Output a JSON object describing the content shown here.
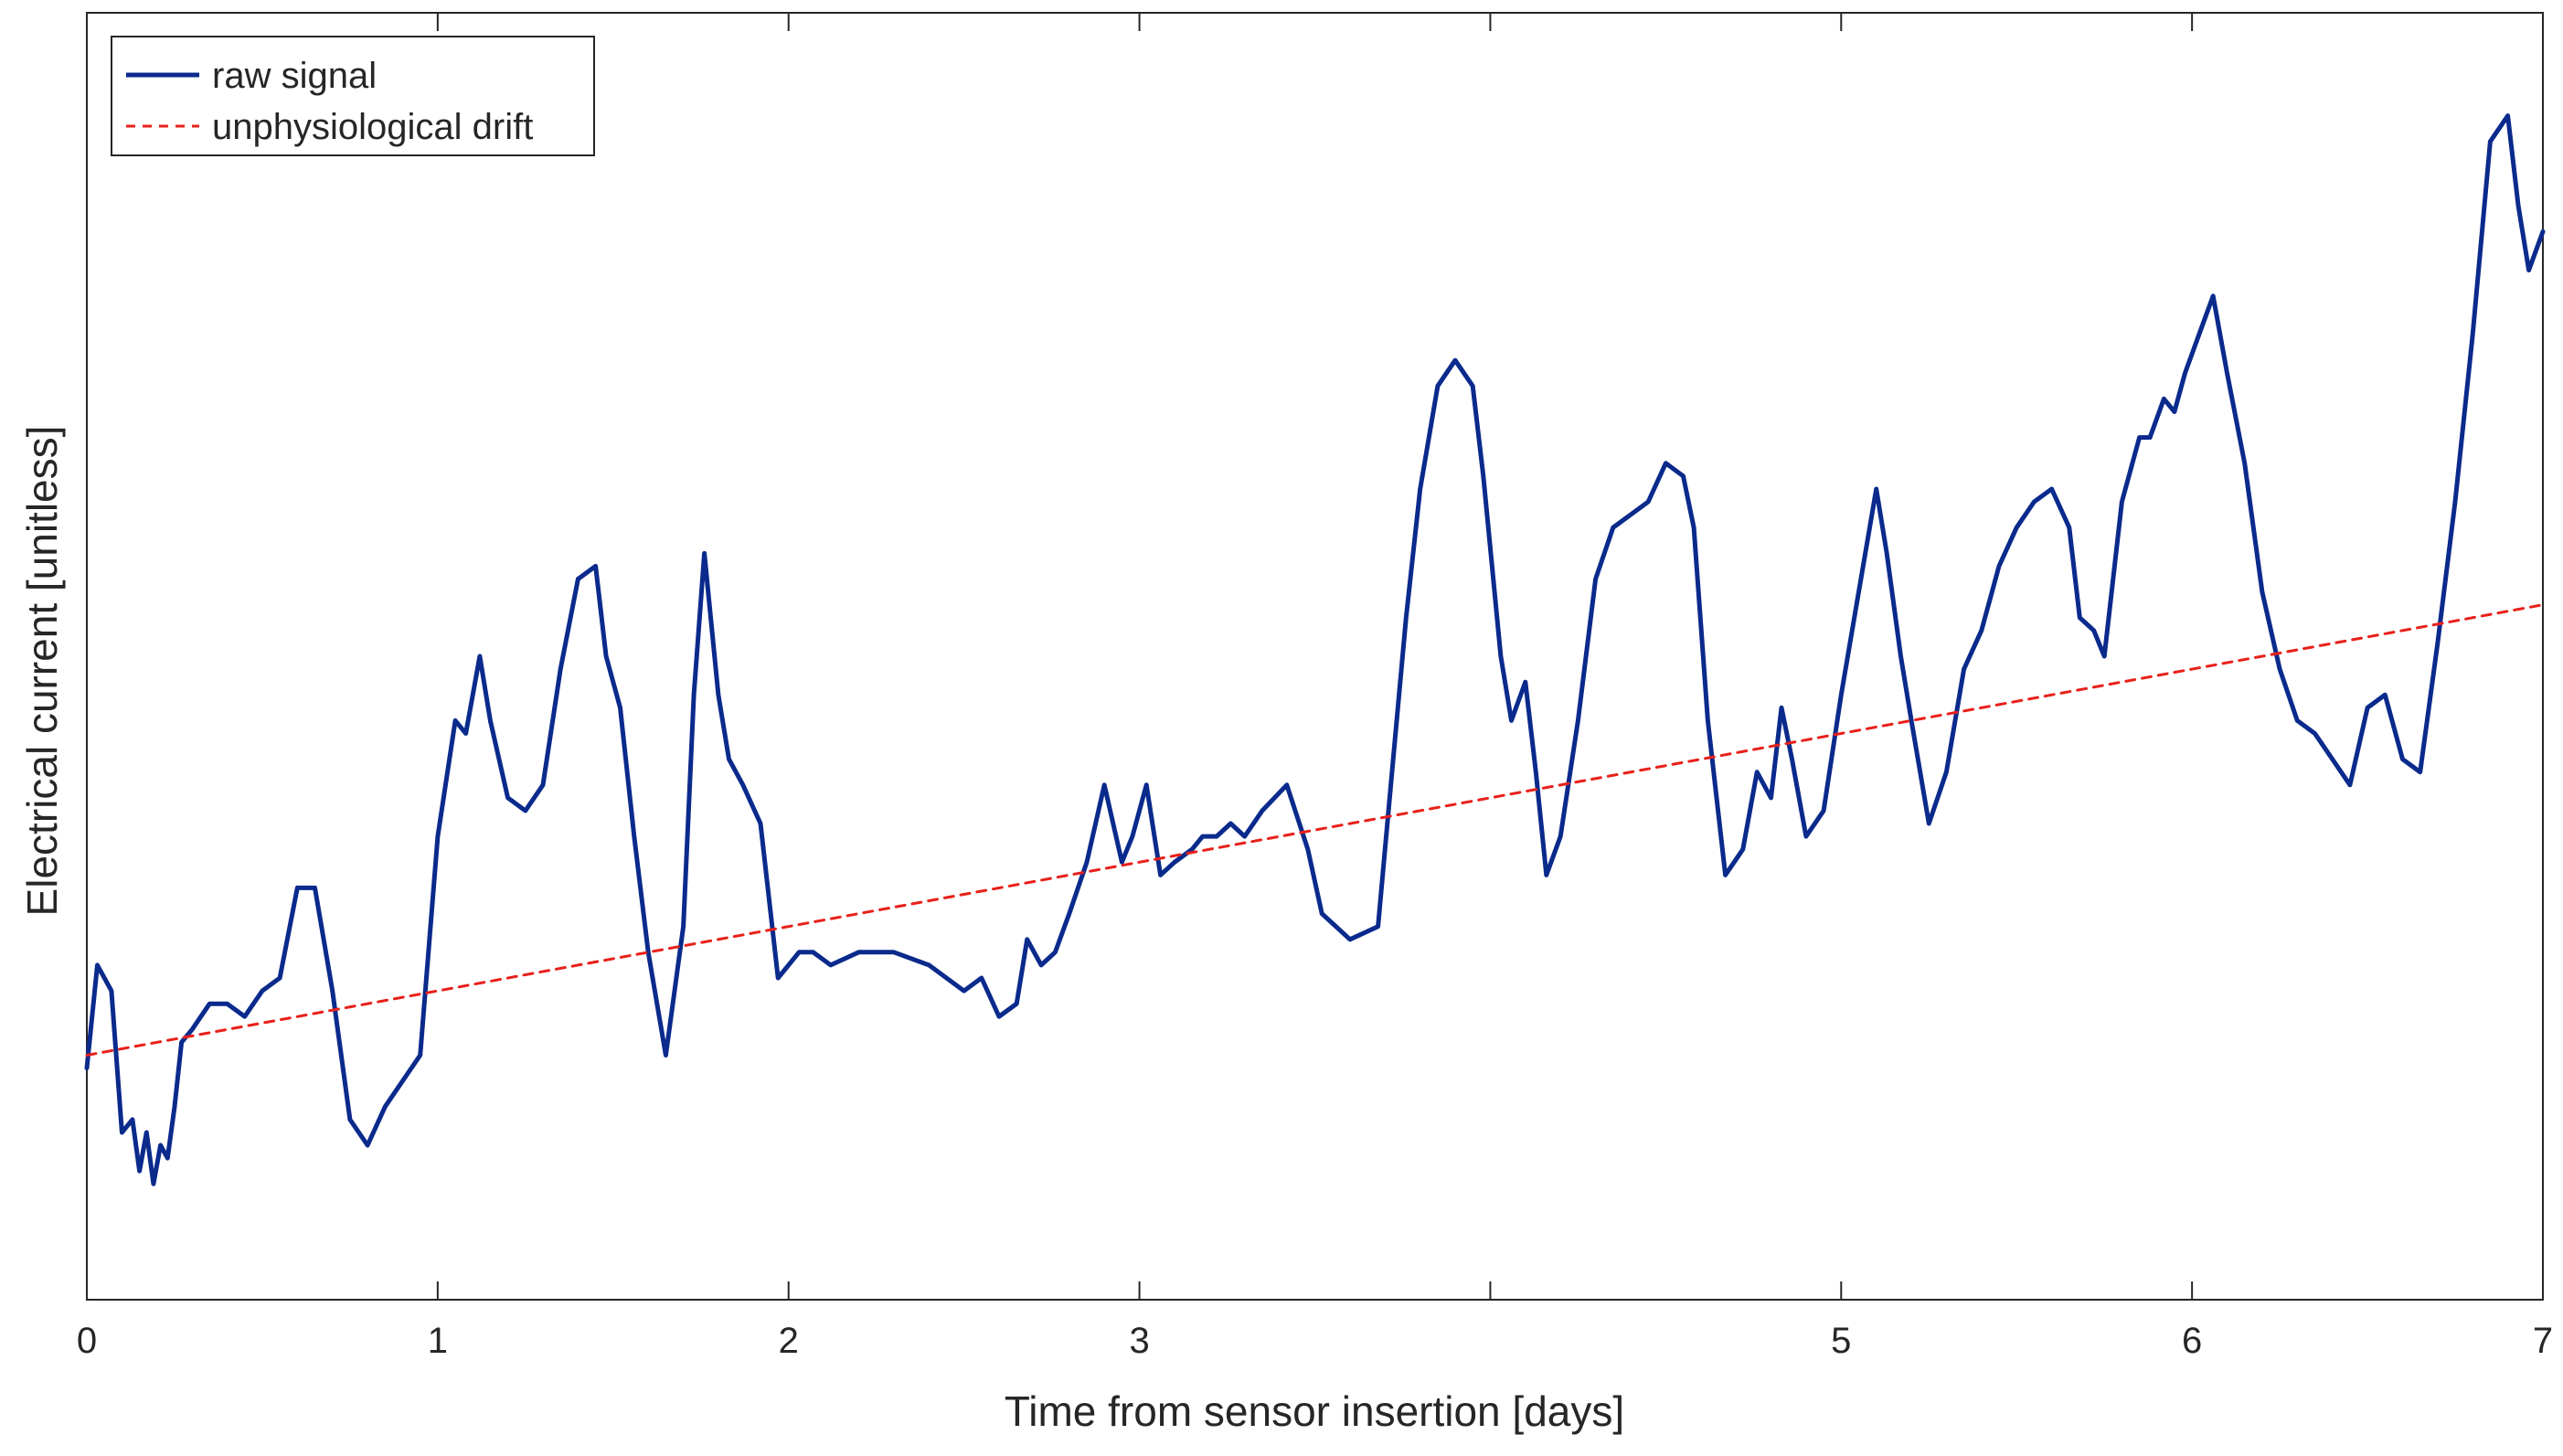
{
  "chart_data": {
    "type": "line",
    "title": "",
    "xlabel": "Time from sensor insertion [days]",
    "ylabel": "Electrical current [unitless]",
    "xlim": [
      0,
      7
    ],
    "ylim": [
      0,
      100
    ],
    "xticks": [
      0,
      1,
      2,
      3,
      4,
      5,
      6,
      7
    ],
    "xtick_labels": [
      "0",
      "1",
      "2",
      "3",
      "",
      "5",
      "6",
      "7"
    ],
    "yticks_shown": false,
    "grid": false,
    "legend": {
      "position": "top-left",
      "entries": [
        "raw signal",
        "unphysiological drift"
      ]
    },
    "colors": {
      "raw": "#0a2a8c",
      "drift": "#e8201a",
      "axis": "#262626"
    },
    "series": [
      {
        "name": "raw signal",
        "style": "solid",
        "x": [
          0,
          0.03,
          0.07,
          0.1,
          0.13,
          0.15,
          0.17,
          0.19,
          0.21,
          0.23,
          0.25,
          0.27,
          0.3,
          0.35,
          0.4,
          0.45,
          0.5,
          0.55,
          0.6,
          0.65,
          0.7,
          0.75,
          0.8,
          0.85,
          0.9,
          0.95,
          1.0,
          1.05,
          1.08,
          1.12,
          1.15,
          1.2,
          1.25,
          1.3,
          1.35,
          1.4,
          1.45,
          1.48,
          1.52,
          1.56,
          1.6,
          1.65,
          1.7,
          1.73,
          1.76,
          1.8,
          1.83,
          1.87,
          1.92,
          1.97,
          2.03,
          2.07,
          2.12,
          2.2,
          2.3,
          2.4,
          2.5,
          2.55,
          2.6,
          2.65,
          2.68,
          2.72,
          2.76,
          2.8,
          2.85,
          2.9,
          2.95,
          2.98,
          3.02,
          3.06,
          3.1,
          3.15,
          3.18,
          3.22,
          3.26,
          3.3,
          3.35,
          3.42,
          3.48,
          3.52,
          3.6,
          3.68,
          3.72,
          3.76,
          3.8,
          3.85,
          3.9,
          3.95,
          3.98,
          4.03,
          4.06,
          4.1,
          4.13,
          4.16,
          4.2,
          4.25,
          4.3,
          4.35,
          4.4,
          4.45,
          4.5,
          4.55,
          4.58,
          4.62,
          4.67,
          4.72,
          4.76,
          4.8,
          4.83,
          4.86,
          4.9,
          4.95,
          5.0,
          5.05,
          5.1,
          5.13,
          5.17,
          5.2,
          5.25,
          5.3,
          5.35,
          5.4,
          5.45,
          5.5,
          5.55,
          5.6,
          5.65,
          5.68,
          5.72,
          5.75,
          5.8,
          5.85,
          5.88,
          5.92,
          5.95,
          5.98,
          6.02,
          6.06,
          6.1,
          6.15,
          6.2,
          6.25,
          6.3,
          6.35,
          6.4,
          6.45,
          6.5,
          6.55,
          6.6,
          6.65,
          6.7,
          6.75,
          6.8,
          6.85,
          6.9,
          6.93,
          6.96,
          7.0
        ],
        "y": [
          18,
          26,
          24,
          13,
          14,
          10,
          13,
          9,
          12,
          11,
          15,
          20,
          21,
          23,
          23,
          22,
          24,
          25,
          32,
          32,
          24,
          14,
          12,
          15,
          17,
          19,
          36,
          45,
          44,
          50,
          45,
          39,
          38,
          40,
          49,
          56,
          57,
          50,
          46,
          36,
          27,
          19,
          29,
          47,
          58,
          47,
          42,
          40,
          37,
          25,
          27,
          27,
          26,
          27,
          27,
          26,
          24,
          25,
          22,
          23,
          28,
          26,
          27,
          30,
          34,
          40,
          34,
          36,
          40,
          33,
          34,
          35,
          36,
          36,
          37,
          36,
          38,
          40,
          35,
          30,
          28,
          29,
          41,
          53,
          63,
          71,
          73,
          71,
          64,
          50,
          45,
          48,
          41,
          33,
          36,
          45,
          56,
          60,
          61,
          62,
          65,
          64,
          60,
          45,
          33,
          35,
          41,
          39,
          46,
          42,
          36,
          38,
          47,
          55,
          63,
          58,
          50,
          45,
          37,
          41,
          49,
          52,
          57,
          60,
          62,
          63,
          60,
          53,
          52,
          50,
          62,
          67,
          67,
          70,
          69,
          72,
          75,
          78,
          72,
          65,
          55,
          49,
          45,
          44,
          42,
          40,
          46,
          47,
          42,
          41,
          51,
          62,
          75,
          90,
          92,
          85,
          80,
          83
        ]
      },
      {
        "name": "unphysiological drift",
        "style": "dashed",
        "x": [
          0,
          7
        ],
        "y": [
          19,
          54
        ]
      }
    ]
  }
}
